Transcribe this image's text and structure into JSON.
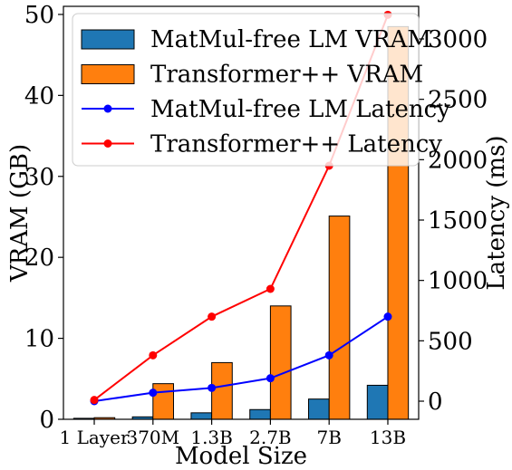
{
  "chart_data": {
    "type": "bar",
    "categories": [
      "1 Layer",
      "370M",
      "1.3B",
      "2.7B",
      "7B",
      "13B"
    ],
    "xlabel": "Model Size",
    "ylabel_left": "VRAM (GB)",
    "ylabel_right": "Latency (ms)",
    "ylim_left": [
      0,
      51
    ],
    "ylim_right": [
      -150,
      3270
    ],
    "yticks_left": [
      0,
      10,
      20,
      30,
      40,
      50
    ],
    "yticks_right": [
      0,
      500,
      1000,
      1500,
      2000,
      2500,
      3000
    ],
    "grid": false,
    "legend_position": "top-left",
    "series": [
      {
        "name": "MatMul-free LM VRAM",
        "type": "bar",
        "axis": "left",
        "color": "#1f77b4",
        "values": [
          0.12,
          0.3,
          0.8,
          1.2,
          2.5,
          4.2
        ]
      },
      {
        "name": "Transformer++ VRAM",
        "type": "bar",
        "axis": "left",
        "color": "#ff7f0e",
        "values": [
          0.2,
          4.4,
          7.0,
          14.0,
          25.1,
          48.5
        ]
      },
      {
        "name": "MatMul-free LM Latency",
        "type": "line",
        "axis": "right",
        "color": "#0000ff",
        "values": [
          0,
          70,
          110,
          190,
          380,
          700
        ]
      },
      {
        "name": "Transformer++ Latency",
        "type": "line",
        "axis": "right",
        "color": "#ff0000",
        "values": [
          10,
          380,
          700,
          930,
          1950,
          3200
        ]
      }
    ]
  }
}
